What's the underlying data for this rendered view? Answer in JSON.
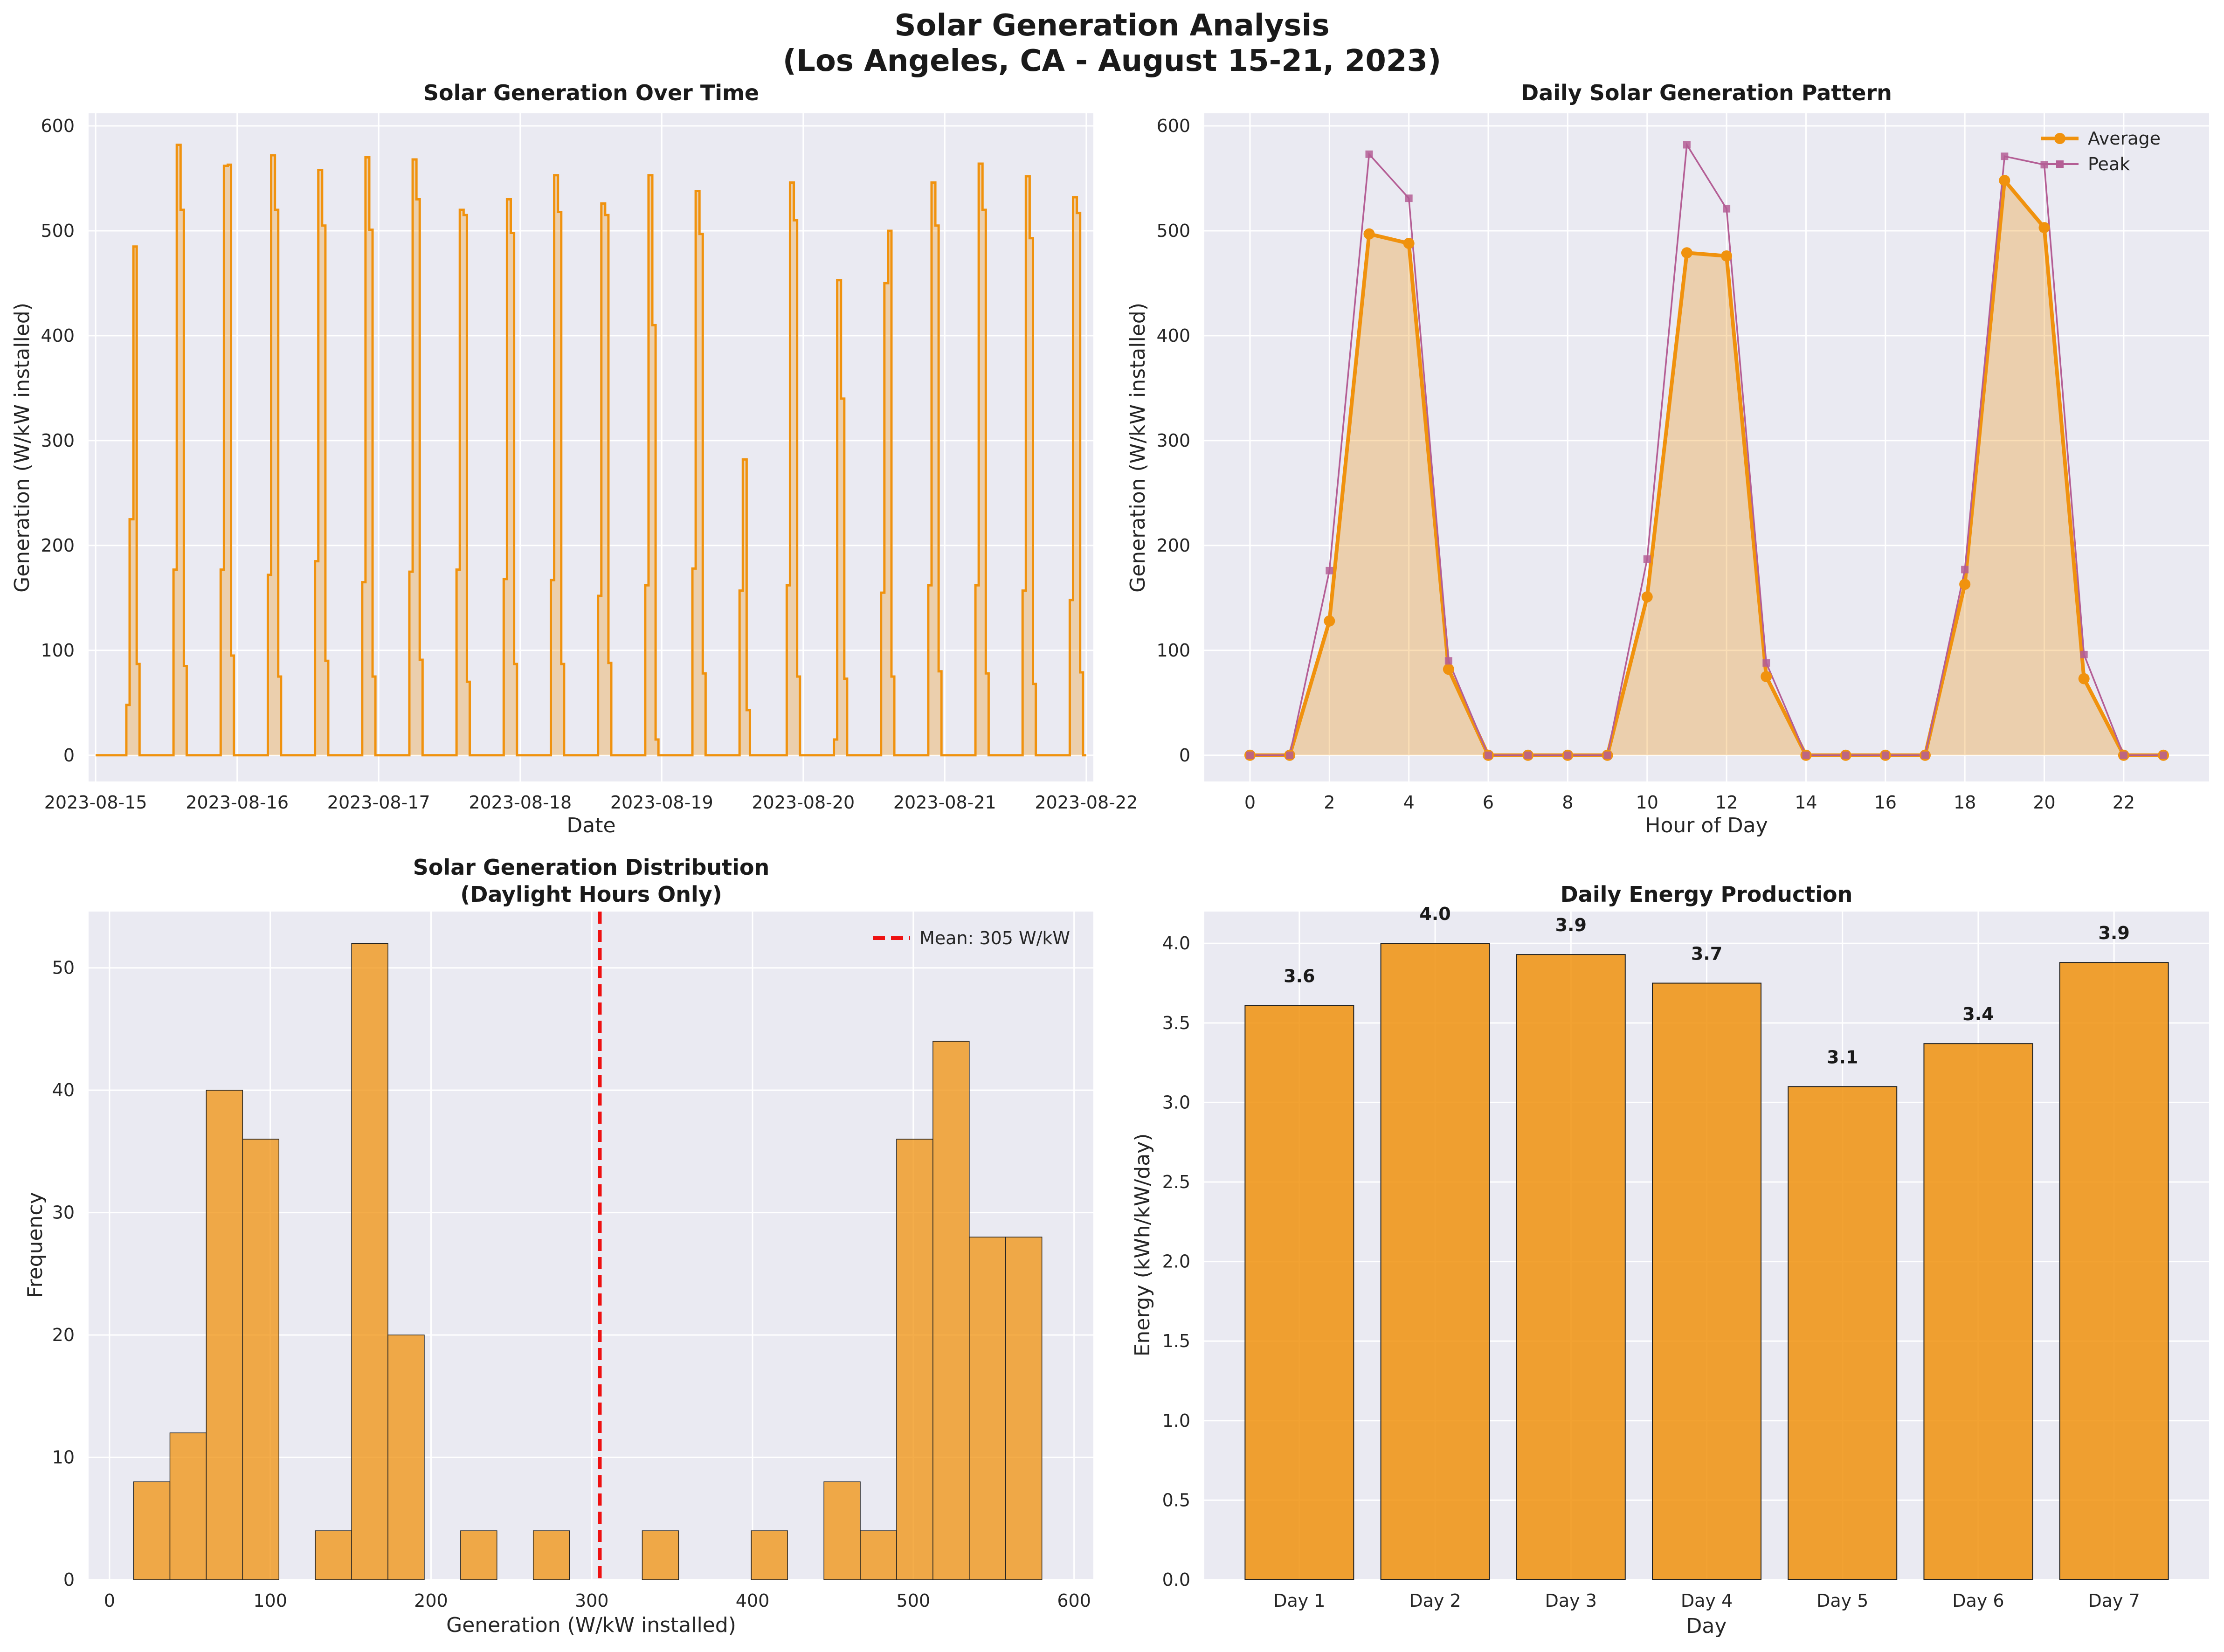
{
  "suptitle": [
    "Solar Generation Analysis",
    "(Los Angeles, CA - August 15-21, 2023)"
  ],
  "colors": {
    "orange": "#f0920e",
    "peak": "#b45e95",
    "mean": "#ee1111",
    "axes_bg": "#eaeaf2"
  },
  "chart_data": [
    {
      "type": "area",
      "title": "Solar Generation Over Time",
      "xlabel": "Date",
      "ylabel": "Generation (W/kW installed)",
      "xticks": [
        "2023-08-15",
        "2023-08-16",
        "2023-08-17",
        "2023-08-18",
        "2023-08-19",
        "2023-08-20",
        "2023-08-21",
        "2023-08-22"
      ],
      "yticks": [
        0,
        100,
        200,
        300,
        400,
        500,
        600
      ],
      "xlim_days": [
        -0.05,
        7.05
      ],
      "ylim": [
        -25,
        612
      ],
      "x_units": "days since 2023-08-15 00:00",
      "days": [
        [
          [
            0,
            0
          ],
          [
            0.5,
            0
          ],
          [
            0.65,
            48
          ],
          [
            0.72,
            225
          ],
          [
            0.8,
            485
          ],
          [
            0.87,
            87
          ],
          [
            0.93,
            0
          ]
        ],
        [
          [
            0,
            0
          ],
          [
            0.5,
            0
          ],
          [
            0.65,
            177
          ],
          [
            0.72,
            582
          ],
          [
            0.8,
            520
          ],
          [
            0.87,
            85
          ],
          [
            0.93,
            0
          ]
        ],
        [
          [
            0,
            0
          ],
          [
            0.5,
            0
          ],
          [
            0.65,
            177
          ],
          [
            0.72,
            562
          ],
          [
            0.8,
            563
          ],
          [
            0.87,
            95
          ],
          [
            0.93,
            0
          ]
        ],
        [
          [
            0,
            0
          ],
          [
            0.5,
            0
          ],
          [
            0.65,
            172
          ],
          [
            0.72,
            572
          ],
          [
            0.8,
            520
          ],
          [
            0.87,
            75
          ],
          [
            0.93,
            0
          ]
        ],
        [
          [
            0,
            0
          ],
          [
            0.5,
            0
          ],
          [
            0.65,
            185
          ],
          [
            0.72,
            558
          ],
          [
            0.8,
            505
          ],
          [
            0.87,
            90
          ],
          [
            0.93,
            0
          ]
        ],
        [
          [
            0,
            0
          ],
          [
            0.5,
            0
          ],
          [
            0.65,
            165
          ],
          [
            0.72,
            570
          ],
          [
            0.8,
            501
          ],
          [
            0.87,
            75
          ],
          [
            0.93,
            0
          ]
        ],
        [
          [
            0,
            0
          ],
          [
            0.5,
            0
          ],
          [
            0.65,
            175
          ],
          [
            0.72,
            568
          ],
          [
            0.8,
            530
          ],
          [
            0.87,
            91
          ],
          [
            0.93,
            0
          ]
        ],
        [
          [
            0,
            0
          ],
          [
            0.5,
            0
          ],
          [
            0.65,
            177
          ],
          [
            0.72,
            520
          ],
          [
            0.8,
            515
          ],
          [
            0.87,
            70
          ],
          [
            0.93,
            0
          ]
        ],
        [
          [
            0,
            0
          ],
          [
            0.5,
            0
          ],
          [
            0.65,
            168
          ],
          [
            0.72,
            530
          ],
          [
            0.8,
            498
          ],
          [
            0.87,
            87
          ],
          [
            0.93,
            0
          ]
        ],
        [
          [
            0,
            0
          ],
          [
            0.5,
            0
          ],
          [
            0.65,
            167
          ],
          [
            0.72,
            553
          ],
          [
            0.8,
            518
          ],
          [
            0.87,
            87
          ],
          [
            0.93,
            0
          ]
        ],
        [
          [
            0,
            0
          ],
          [
            0.5,
            0
          ],
          [
            0.65,
            152
          ],
          [
            0.72,
            526
          ],
          [
            0.8,
            515
          ],
          [
            0.87,
            88
          ],
          [
            0.93,
            0
          ]
        ],
        [
          [
            0,
            0
          ],
          [
            0.5,
            0
          ],
          [
            0.65,
            162
          ],
          [
            0.72,
            553
          ],
          [
            0.8,
            410
          ],
          [
            0.87,
            15
          ],
          [
            0.93,
            0
          ]
        ],
        [
          [
            0,
            0
          ],
          [
            0.5,
            0
          ],
          [
            0.65,
            178
          ],
          [
            0.72,
            538
          ],
          [
            0.8,
            497
          ],
          [
            0.87,
            78
          ],
          [
            0.93,
            0
          ]
        ],
        [
          [
            0,
            0
          ],
          [
            0.5,
            0
          ],
          [
            0.65,
            157
          ],
          [
            0.72,
            282
          ],
          [
            0.8,
            43
          ],
          [
            0.87,
            0
          ],
          [
            0.93,
            0
          ]
        ],
        [
          [
            0,
            0
          ],
          [
            0.5,
            0
          ],
          [
            0.65,
            162
          ],
          [
            0.72,
            546
          ],
          [
            0.8,
            510
          ],
          [
            0.87,
            75
          ],
          [
            0.93,
            0
          ]
        ],
        [
          [
            0,
            0
          ],
          [
            0.5,
            0
          ],
          [
            0.65,
            15
          ],
          [
            0.72,
            453
          ],
          [
            0.8,
            340
          ],
          [
            0.87,
            73
          ],
          [
            0.93,
            0
          ]
        ],
        [
          [
            0,
            0
          ],
          [
            0.5,
            0
          ],
          [
            0.65,
            155
          ],
          [
            0.72,
            450
          ],
          [
            0.8,
            500
          ],
          [
            0.87,
            75
          ],
          [
            0.93,
            0
          ]
        ],
        [
          [
            0,
            0
          ],
          [
            0.5,
            0
          ],
          [
            0.65,
            162
          ],
          [
            0.72,
            546
          ],
          [
            0.8,
            505
          ],
          [
            0.87,
            80
          ],
          [
            0.93,
            0
          ]
        ],
        [
          [
            0,
            0
          ],
          [
            0.5,
            0
          ],
          [
            0.65,
            162
          ],
          [
            0.72,
            564
          ],
          [
            0.8,
            520
          ],
          [
            0.87,
            78
          ],
          [
            0.93,
            0
          ]
        ],
        [
          [
            0,
            0
          ],
          [
            0.5,
            0
          ],
          [
            0.65,
            157
          ],
          [
            0.72,
            552
          ],
          [
            0.8,
            493
          ],
          [
            0.87,
            68
          ],
          [
            0.93,
            0
          ]
        ],
        [
          [
            0,
            0
          ],
          [
            0.5,
            0
          ],
          [
            0.65,
            148
          ],
          [
            0.72,
            532
          ],
          [
            0.8,
            517
          ],
          [
            0.87,
            79
          ],
          [
            0.93,
            0
          ]
        ]
      ]
    },
    {
      "type": "line",
      "title": "Daily Solar Generation Pattern",
      "xlabel": "Hour of Day",
      "ylabel": "Generation (W/kW installed)",
      "xlim": [
        -1.15,
        24.15
      ],
      "ylim": [
        -25,
        612
      ],
      "xticks": [
        0,
        2,
        4,
        6,
        8,
        10,
        12,
        14,
        16,
        18,
        20,
        22
      ],
      "yticks": [
        0,
        100,
        200,
        300,
        400,
        500,
        600
      ],
      "x": [
        0,
        1,
        2,
        3,
        4,
        5,
        6,
        7,
        8,
        9,
        10,
        11,
        12,
        13,
        14,
        15,
        16,
        17,
        18,
        19,
        20,
        21,
        22,
        23
      ],
      "series": [
        {
          "name": "Average",
          "values": [
            0,
            0,
            128,
            497,
            488,
            82,
            0,
            0,
            0,
            0,
            151,
            479,
            476,
            75,
            0,
            0,
            0,
            0,
            163,
            548,
            503,
            73,
            0,
            0
          ]
        },
        {
          "name": "Peak",
          "values": [
            0,
            0,
            176,
            573,
            531,
            90,
            0,
            0,
            0,
            0,
            187,
            582,
            521,
            88,
            0,
            0,
            0,
            0,
            177,
            571,
            563,
            96,
            0,
            0
          ]
        }
      ],
      "legend": [
        "Average",
        "Peak"
      ],
      "legend_position": "upper right"
    },
    {
      "type": "histogram",
      "title": [
        "Solar Generation Distribution",
        "(Daylight Hours Only)"
      ],
      "xlabel": "Generation (W/kW installed)",
      "ylabel": "Frequency",
      "xlim": [
        -13,
        612
      ],
      "ylim": [
        0,
        54.6
      ],
      "xticks": [
        0,
        100,
        200,
        300,
        400,
        500,
        600
      ],
      "yticks": [
        0,
        10,
        20,
        30,
        40,
        50
      ],
      "bin_edges": [
        15,
        37.6,
        60.2,
        82.8,
        105.4,
        128,
        150.6,
        173.2,
        195.8,
        218.4,
        241,
        263.6,
        286.2,
        308.8,
        331.4,
        354,
        376.6,
        399.2,
        421.8,
        444.4,
        467,
        489.6,
        512.2,
        534.8,
        557.4,
        580
      ],
      "counts": [
        8,
        12,
        40,
        36,
        0,
        4,
        52,
        20,
        0,
        4,
        0,
        4,
        0,
        0,
        4,
        0,
        0,
        4,
        0,
        8,
        4,
        36,
        44,
        28,
        28
      ],
      "mean": 305,
      "mean_label": "Mean: 305 W/kW",
      "legend_position": "upper right"
    },
    {
      "type": "bar",
      "title": "Daily Energy Production",
      "xlabel": "Day",
      "ylabel": "Energy (kWh/kW/day)",
      "categories": [
        "Day 1",
        "Day 2",
        "Day 3",
        "Day 4",
        "Day 5",
        "Day 6",
        "Day 7"
      ],
      "values": [
        3.61,
        4.0,
        3.93,
        3.75,
        3.1,
        3.37,
        3.88
      ],
      "value_labels": [
        "3.6",
        "4.0",
        "3.9",
        "3.7",
        "3.1",
        "3.4",
        "3.9"
      ],
      "ylim": [
        0,
        4.2
      ],
      "yticks": [
        "0.0",
        "0.5",
        "1.0",
        "1.5",
        "2.0",
        "2.5",
        "3.0",
        "3.5",
        "4.0"
      ]
    }
  ]
}
